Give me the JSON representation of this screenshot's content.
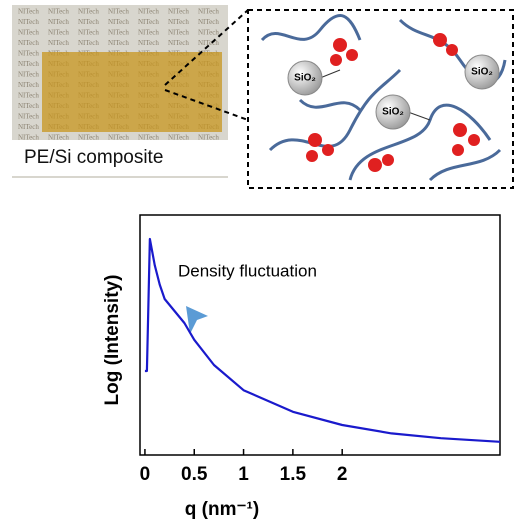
{
  "photo": {
    "background_text": "NITech",
    "label": "PE/Si composite"
  },
  "schematic": {
    "particles": [
      "SiO₂",
      "SiO₂",
      "SiO₂"
    ]
  },
  "chart_data": {
    "type": "line",
    "annotation": "Density fluctuation",
    "x_label": "q (nm⁻¹)",
    "y_label": "Log (Intensity)",
    "x": [
      0,
      0.02,
      0.05,
      0.1,
      0.15,
      0.2,
      0.3,
      0.4,
      0.5,
      0.7,
      1.0,
      1.5,
      2.0,
      2.5,
      3.0,
      3.6
    ],
    "series": [
      {
        "color": "#1a1acc",
        "values": [
          0.35,
          0.35,
          0.9,
          0.79,
          0.71,
          0.65,
          0.6,
          0.55,
          0.48,
          0.375,
          0.27,
          0.18,
          0.125,
          0.09,
          0.07,
          0.055
        ]
      }
    ],
    "xlim": [
      -0.05,
      3.6
    ],
    "ylim": [
      0,
      1
    ],
    "xticks": [
      0,
      0.5,
      1,
      1.5,
      2
    ]
  }
}
